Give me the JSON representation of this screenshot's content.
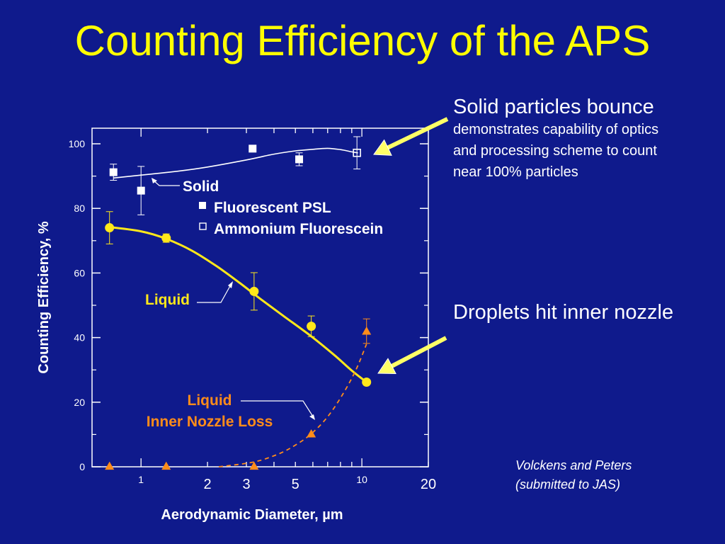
{
  "slide": {
    "title": "Counting Efficiency of the APS",
    "solid_note_head": "Solid particles bounce",
    "solid_note_body_lines": [
      "demonstrates capability of optics",
      "and processing scheme to count",
      "near 100% particles"
    ],
    "liquid_note": "Droplets hit inner nozzle",
    "citation_lines": [
      "Volckens and Peters",
      "(submitted to JAS)"
    ]
  },
  "colors": {
    "background": "#0f1a8c",
    "title": "#ffff00",
    "axes": "#ffffff",
    "solid_series": "#ffffff",
    "liquid_series": "#ffe81a",
    "loss_series": "#ff8c1a",
    "annotation_arrow": "#ffff66"
  },
  "chart_data": {
    "type": "scatter",
    "xlabel": "Aerodynamic Diameter, µm",
    "ylabel": "Counting Efficiency, %",
    "xscale": "log",
    "xlim": [
      0.6,
      20
    ],
    "ylim": [
      0,
      100
    ],
    "grid": false,
    "y_ticks": [
      0,
      20,
      40,
      60,
      80,
      100
    ],
    "y_tick_labels": [
      "0",
      "20",
      "40",
      "60",
      "80",
      "100"
    ],
    "x_tick_labels": [
      {
        "value": 1,
        "label": "1",
        "size": "small"
      },
      {
        "value": 2,
        "label": "2",
        "size": "large"
      },
      {
        "value": 3,
        "label": "3",
        "size": "large"
      },
      {
        "value": 5,
        "label": "5",
        "size": "large"
      },
      {
        "value": 10,
        "label": "10",
        "size": "small"
      },
      {
        "value": 20,
        "label": "20",
        "size": "large"
      }
    ],
    "x_minor_ticks": [
      1,
      2,
      3,
      4,
      5,
      6,
      7,
      8,
      9,
      10,
      20
    ],
    "series": [
      {
        "name": "Fluorescent PSL",
        "kind": "marker-filled-square",
        "x": [
          0.75,
          1.0,
          3.2,
          5.2
        ],
        "y": [
          91.2,
          85.5,
          98.5,
          95.2
        ],
        "err": [
          2.5,
          7.5,
          0,
          2.0
        ]
      },
      {
        "name": "Ammonium Fluorescein",
        "kind": "marker-open-square",
        "x": [
          9.5
        ],
        "y": [
          97.2
        ],
        "err": [
          5
        ]
      },
      {
        "name": "Liquid",
        "kind": "marker-filled-circle",
        "x": [
          0.72,
          1.3,
          3.25,
          5.9,
          10.5
        ],
        "y": [
          74,
          70.8,
          54.3,
          43.5,
          26.2
        ],
        "err": [
          5,
          1.3,
          5.8,
          3.2,
          0
        ]
      },
      {
        "name": "Liquid Inner Nozzle Loss",
        "kind": "marker-triangle",
        "x": [
          0.72,
          1.3,
          3.25,
          5.9,
          10.5
        ],
        "y": [
          0.2,
          0.2,
          0.2,
          10.2,
          42
        ],
        "err": [
          0,
          0,
          0,
          0,
          3.8
        ]
      }
    ],
    "fit_curves": [
      {
        "series": "Solid",
        "style": "solid-thin",
        "x": [
          0.75,
          1.0,
          1.5,
          2.0,
          3.0,
          4.0,
          5.0,
          6.0,
          7.0,
          8.0,
          9.0,
          9.6
        ],
        "y": [
          89.4,
          90.3,
          91.6,
          92.8,
          95.0,
          96.8,
          97.8,
          98.3,
          98.6,
          98.2,
          97.5,
          97.2
        ]
      },
      {
        "series": "Liquid",
        "style": "solid-thick",
        "x": [
          0.72,
          1.0,
          1.3,
          1.7,
          2.2,
          2.8,
          3.5,
          4.5,
          5.9,
          7.5,
          9.0,
          10.5
        ],
        "y": [
          74.2,
          72.9,
          70.6,
          66.9,
          62.1,
          56.9,
          51.8,
          46.3,
          40.4,
          34.6,
          29.8,
          26.2
        ]
      },
      {
        "series": "Liquid Inner Nozzle Loss",
        "style": "dashed",
        "x": [
          2.25,
          3.25,
          4.2,
          5.0,
          5.9,
          7.0,
          8.2,
          9.4,
          10.5
        ],
        "y": [
          0.0,
          1.5,
          4.0,
          6.7,
          10.2,
          15.5,
          22.5,
          30.0,
          38.0
        ]
      }
    ],
    "annotations": {
      "solid_label": "Solid",
      "legend_items": [
        {
          "series": "Fluorescent PSL",
          "marker": "filled-square",
          "label": "Fluorescent PSL"
        },
        {
          "series": "Ammonium Fluorescein",
          "marker": "open-square",
          "label": "Ammonium Fluorescein"
        }
      ],
      "liquid_label": "Liquid",
      "loss_label_lines": [
        "Liquid",
        "Inner Nozzle Loss"
      ]
    }
  }
}
